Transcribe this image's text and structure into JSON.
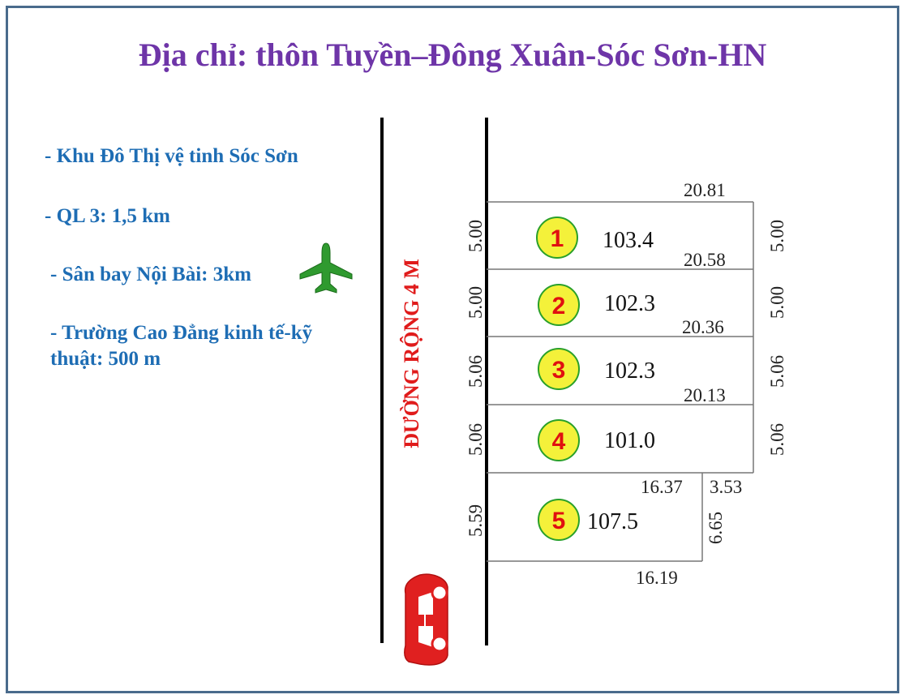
{
  "title": "Địa chỉ: thôn Tuyền–Đông Xuân-Sóc Sơn-HN",
  "info": [
    "- Khu Đô Thị vệ tinh Sóc Sơn",
    "- QL 3: 1,5 km",
    "- Sân bay Nội Bài: 3km",
    "- Trường Cao Đẳng kinh tế-kỹ",
    "thuật: 500 m"
  ],
  "road_label": "ĐƯỜNG RỘNG 4 M",
  "lots": [
    {
      "num": "1",
      "area": "103.4",
      "left": "5.00",
      "right": "5.00",
      "top": "20.81"
    },
    {
      "num": "2",
      "area": "102.3",
      "left": "5.00",
      "right": "5.00",
      "top": "20.58"
    },
    {
      "num": "3",
      "area": "102.3",
      "left": "5.06",
      "right": "5.06",
      "top": "20.36"
    },
    {
      "num": "4",
      "area": "101.0",
      "left": "5.06",
      "right": "5.06",
      "top": "20.13"
    },
    {
      "num": "5",
      "area": "107.5",
      "left": "5.59",
      "right": "6.65",
      "top": "16.37",
      "step": "3.53",
      "bottom": "16.19"
    }
  ],
  "icons": {
    "plane": "airplane-icon",
    "car": "car-icon"
  },
  "colors": {
    "title": "#6e35a8",
    "info": "#1e6db4",
    "road": "#e01b1b",
    "lot_badge_fill": "#f4f13a",
    "lot_badge_stroke": "#2aa02a",
    "lot_number": "#e01010",
    "plane": "#2f9a2f",
    "car": "#e02020",
    "frame": "#4a6b8c"
  }
}
